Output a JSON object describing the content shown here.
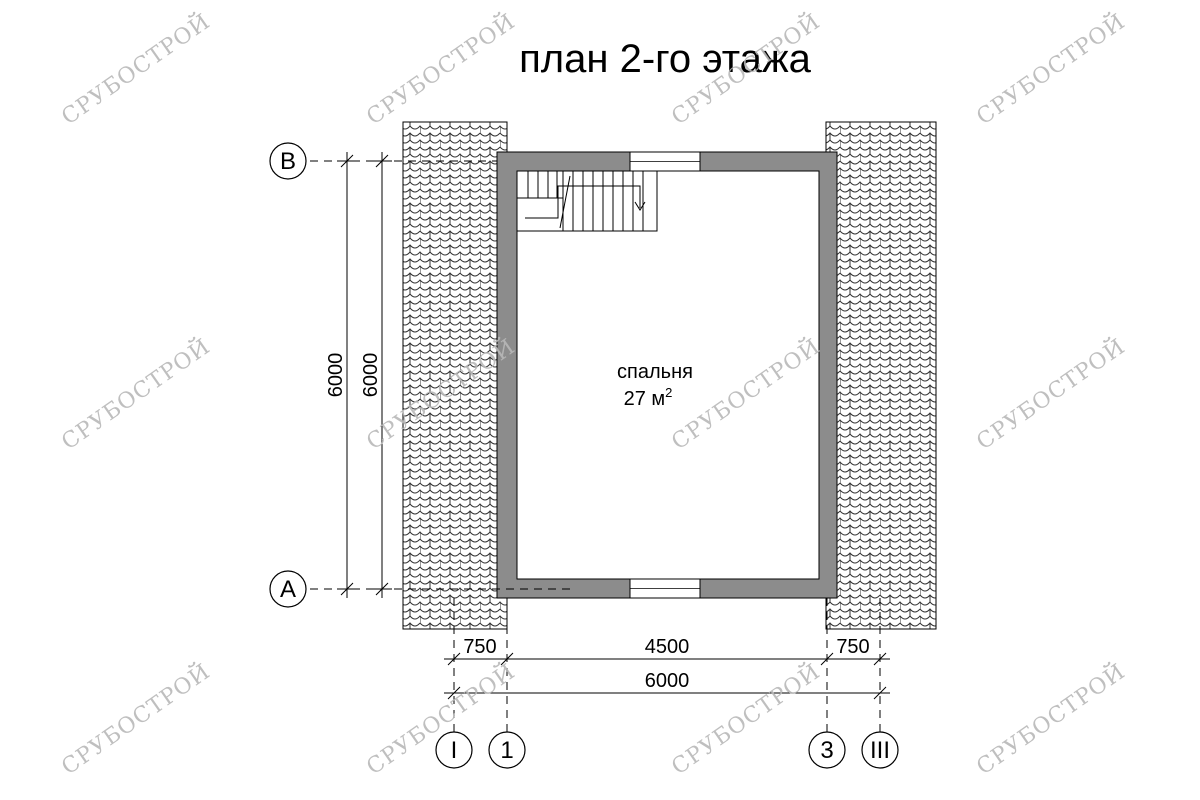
{
  "title": "план 2-го этажа",
  "room": {
    "name": "спальня",
    "area": "27 м",
    "area_sup": "2"
  },
  "axes": {
    "rows": [
      "В",
      "А"
    ],
    "cols": [
      "I",
      "1",
      "3",
      "III"
    ]
  },
  "dimensions": {
    "top": [
      "750",
      "4500",
      "750"
    ],
    "total": "6000",
    "left_outer": "6000",
    "left_inner": "6000"
  },
  "watermark": "СРУБОСТРОЙ",
  "colors": {
    "wall": "#8c8c8c",
    "roof_pattern": "#333333",
    "watermark": "#b8b8b8"
  }
}
